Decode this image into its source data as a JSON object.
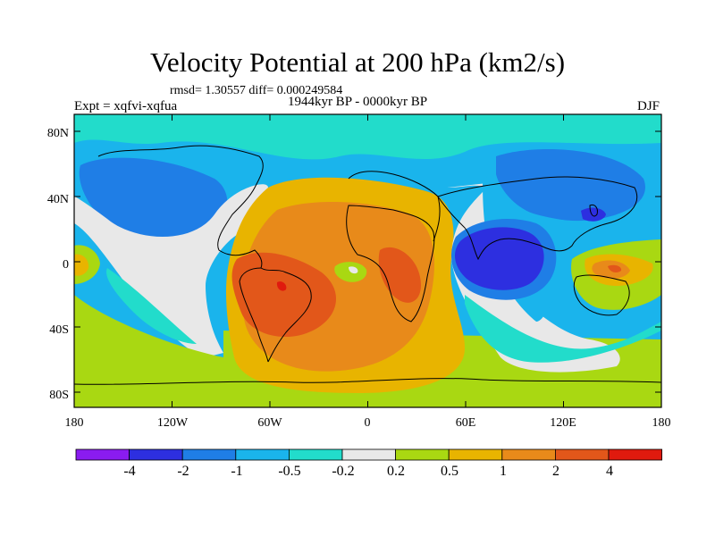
{
  "title": "Velocity Potential at 200 hPa (km2/s)",
  "stats": "rmsd= 1.30557 diff= 0.000249584",
  "experiment": "Expt = xqfvi-xqfua",
  "period": "1944kyr BP - 0000kyr BP",
  "season": "DJF",
  "axes": {
    "lat_ticks": [
      "80N",
      "40N",
      "0",
      "40S",
      "80S"
    ],
    "lon_ticks": [
      "180",
      "120W",
      "60W",
      "0",
      "60E",
      "120E",
      "180"
    ]
  },
  "colorbar": {
    "labels": [
      "-4",
      "-2",
      "-1",
      "-0.5",
      "-0.2",
      "0.2",
      "0.5",
      "1",
      "2",
      "4"
    ],
    "colors": [
      "#8a1cf0",
      "#2d2fe0",
      "#1f7ee6",
      "#1ab4ec",
      "#22dccb",
      "#e8e8e8",
      "#a9d812",
      "#e8b400",
      "#e88a1a",
      "#e2571a",
      "#e01a0e"
    ]
  },
  "palette": {
    "background": "#ffffff",
    "coastline": "#000000"
  }
}
